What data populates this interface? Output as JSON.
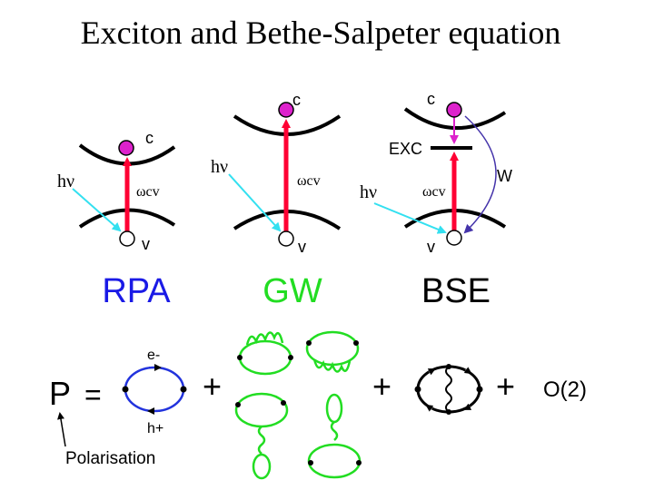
{
  "title": "Exciton and Bethe-Salpeter equation",
  "panels": {
    "rpa": {
      "label": "RPA",
      "photon": "hν",
      "omega": "ωcv",
      "c": "c",
      "v": "v",
      "color": "#1a1ae6"
    },
    "gw": {
      "label": "GW",
      "photon": "hν",
      "omega": "ωcv",
      "c": "c",
      "v": "v",
      "color": "#22dd22"
    },
    "bse": {
      "label": "BSE",
      "photon": "hν",
      "omega": "ωcv",
      "c": "c",
      "v": "v",
      "exc": "EXC",
      "w": "W",
      "color": "#000000"
    }
  },
  "equation": {
    "p": "P",
    "equals": "=",
    "plus": "+",
    "electron": "e-",
    "hole": "h+",
    "order": "O(2)",
    "caption": "Polarisation"
  },
  "colors": {
    "band": "#000000",
    "arrow": "#ff0033",
    "photon": "#33e0f0",
    "electron": "#dd22cc",
    "interaction": "#4433aa",
    "green_diagram": "#22dd22",
    "blue_loop": "#2233dd"
  }
}
